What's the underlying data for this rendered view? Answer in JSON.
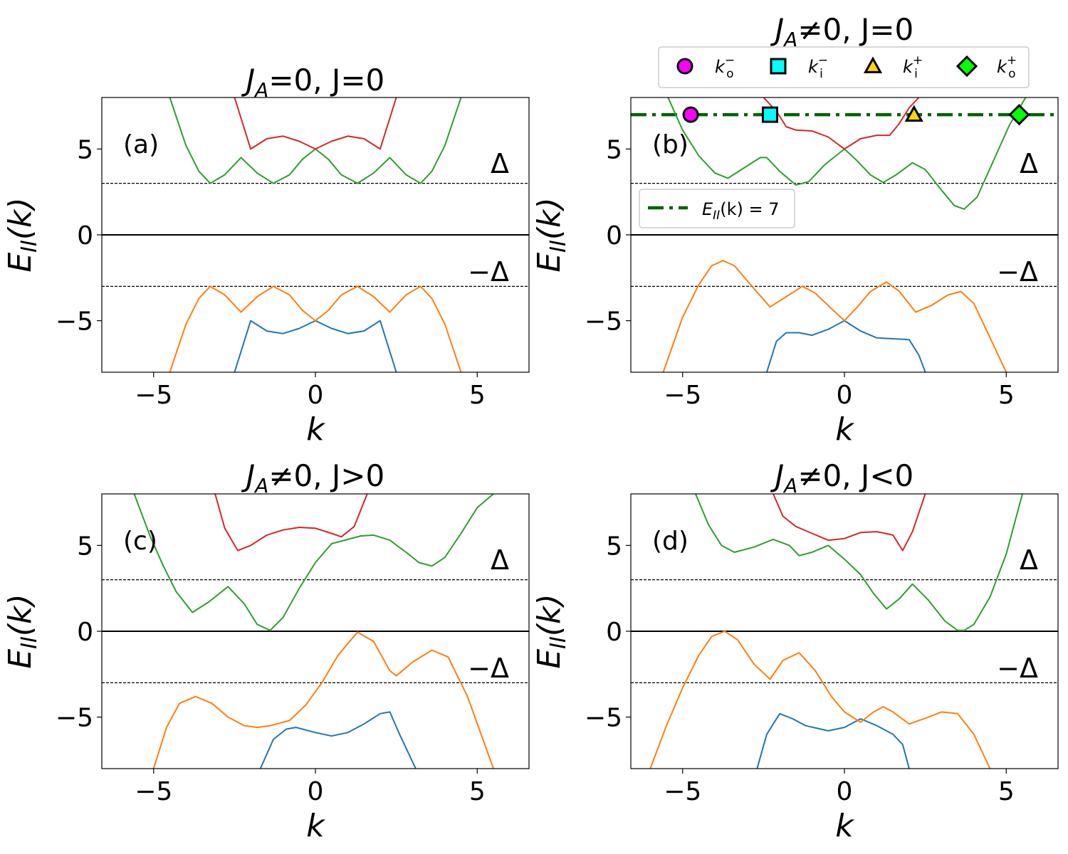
{
  "chart_data": [
    {
      "type": "line",
      "panel_label": "(a)",
      "title": "J_A=0, J=0",
      "title_parts": [
        "J",
        "A",
        "=0, J=0"
      ],
      "xlabel": "k",
      "ylabel": "E_II(k)",
      "xlim": [
        -6.6,
        6.6
      ],
      "ylim": [
        -8,
        8
      ],
      "xticks": [
        -5,
        0,
        5
      ],
      "yticks": [
        -5,
        0,
        5
      ],
      "xtick_labels": [
        "−5",
        "0",
        "5"
      ],
      "ytick_labels": [
        "−5",
        "0",
        "5"
      ],
      "hlines": {
        "gap_upper": 3,
        "gap_lower": -3,
        "zero": 0
      },
      "gap_labels": [
        "Δ",
        "−Δ"
      ],
      "series": [
        {
          "color": "#1f77b4",
          "x": [
            -2.5,
            -2.0,
            -1.5,
            -1.0,
            -0.5,
            0.0,
            0.5,
            1.0,
            1.5,
            2.0,
            2.5
          ],
          "y": [
            -8.0,
            -5.0,
            -5.6,
            -5.75,
            -5.45,
            -5.0,
            -5.45,
            -5.75,
            -5.6,
            -5.0,
            -8.0
          ]
        },
        {
          "color": "#ff7f0e",
          "x": [
            -4.5,
            -4.0,
            -3.6,
            -3.25,
            -2.8,
            -2.3,
            -1.8,
            -1.3,
            -0.8,
            -0.4,
            0.0,
            0.4,
            0.8,
            1.3,
            1.8,
            2.3,
            2.8,
            3.25,
            3.6,
            4.0,
            4.5
          ],
          "y": [
            -8.0,
            -5.2,
            -3.7,
            -3.0,
            -3.5,
            -4.5,
            -3.6,
            -3.0,
            -3.5,
            -4.4,
            -5.0,
            -4.4,
            -3.5,
            -3.0,
            -3.6,
            -4.5,
            -3.5,
            -3.0,
            -3.7,
            -5.2,
            -8.0
          ]
        },
        {
          "color": "#2ca02c",
          "x": [
            -4.5,
            -4.0,
            -3.6,
            -3.25,
            -2.8,
            -2.3,
            -1.8,
            -1.3,
            -0.8,
            -0.4,
            0.0,
            0.4,
            0.8,
            1.3,
            1.8,
            2.3,
            2.8,
            3.25,
            3.6,
            4.0,
            4.5
          ],
          "y": [
            8.0,
            5.2,
            3.7,
            3.0,
            3.5,
            4.5,
            3.6,
            3.0,
            3.5,
            4.4,
            5.0,
            4.4,
            3.5,
            3.0,
            3.6,
            4.5,
            3.5,
            3.0,
            3.7,
            5.2,
            8.0
          ]
        },
        {
          "color": "#d62728",
          "x": [
            -2.5,
            -2.0,
            -1.5,
            -1.0,
            -0.5,
            0.0,
            0.5,
            1.0,
            1.5,
            2.0,
            2.5
          ],
          "y": [
            8.0,
            5.0,
            5.6,
            5.75,
            5.45,
            5.0,
            5.45,
            5.75,
            5.6,
            5.0,
            8.0
          ]
        }
      ]
    },
    {
      "type": "line",
      "panel_label": "(b)",
      "title": "J_A≠0, J=0",
      "title_parts": [
        "J",
        "A",
        "≠0, J=0"
      ],
      "xlabel": "k",
      "ylabel": "E_II(k)",
      "xlim": [
        -6.6,
        6.6
      ],
      "ylim": [
        -8,
        8
      ],
      "xticks": [
        -5,
        0,
        5
      ],
      "yticks": [
        -5,
        0,
        5
      ],
      "xtick_labels": [
        "−5",
        "0",
        "5"
      ],
      "ytick_labels": [
        "−5",
        "0",
        "5"
      ],
      "hlines": {
        "gap_upper": 3,
        "gap_lower": -3,
        "zero": 0
      },
      "gap_labels": [
        "Δ",
        "−Δ"
      ],
      "reference_line": {
        "y": 7,
        "color": "#006400",
        "legend_label": "E_II(k) = 7",
        "legend_text": "E",
        "legend_sub": "II",
        "legend_rest": "(k) = 7"
      },
      "markers": [
        {
          "name": "k_o^-",
          "x": -4.75,
          "y": 7,
          "shape": "circle",
          "color": "#ff00ff",
          "base": "k",
          "sup": "−",
          "sub": "o"
        },
        {
          "name": "k_i^-",
          "x": -2.3,
          "y": 7,
          "shape": "square",
          "color": "#00ffff",
          "base": "k",
          "sup": "−",
          "sub": "i"
        },
        {
          "name": "k_i^+",
          "x": 2.15,
          "y": 7,
          "shape": "triangle",
          "color": "#ffd700",
          "base": "k",
          "sup": "+",
          "sub": "i"
        },
        {
          "name": "k_o^+",
          "x": 5.4,
          "y": 7,
          "shape": "diamond",
          "color": "#00ff00",
          "base": "k",
          "sup": "+",
          "sub": "o"
        }
      ],
      "series": [
        {
          "color": "#1f77b4",
          "x": [
            -2.4,
            -2.1,
            -1.8,
            -1.4,
            -1.0,
            -0.5,
            0.0,
            0.5,
            1.0,
            1.5,
            2.0,
            2.3,
            2.5
          ],
          "y": [
            -8.0,
            -6.2,
            -5.7,
            -5.7,
            -5.85,
            -5.5,
            -5.0,
            -5.6,
            -6.0,
            -6.05,
            -6.1,
            -7.0,
            -8.0
          ]
        },
        {
          "color": "#ff7f0e",
          "x": [
            -5.6,
            -5.0,
            -4.5,
            -4.1,
            -3.75,
            -3.4,
            -2.9,
            -2.3,
            -1.8,
            -1.3,
            -0.9,
            -0.4,
            0.0,
            0.4,
            0.8,
            1.3,
            1.7,
            2.2,
            2.7,
            3.2,
            3.6,
            4.0,
            4.4,
            5.0
          ],
          "y": [
            -8.0,
            -4.8,
            -2.9,
            -1.8,
            -1.5,
            -1.8,
            -2.9,
            -4.2,
            -3.6,
            -3.0,
            -3.4,
            -4.3,
            -5.0,
            -4.2,
            -3.3,
            -2.75,
            -3.3,
            -4.5,
            -4.1,
            -3.5,
            -3.3,
            -4.0,
            -5.6,
            -8.0
          ]
        },
        {
          "color": "#2ca02c",
          "x": [
            -5.45,
            -5.0,
            -4.5,
            -4.0,
            -3.6,
            -3.1,
            -2.6,
            -2.4,
            -2.0,
            -1.5,
            -1.1,
            -0.6,
            0.0,
            0.4,
            0.8,
            1.2,
            1.6,
            2.1,
            2.5,
            3.0,
            3.4,
            3.7,
            4.1,
            4.6,
            5.1,
            5.6
          ],
          "y": [
            8.0,
            6.1,
            4.6,
            3.6,
            3.3,
            3.9,
            4.5,
            4.5,
            3.7,
            2.9,
            3.1,
            4.1,
            5.0,
            4.3,
            3.5,
            3.05,
            3.5,
            4.2,
            3.8,
            2.6,
            1.7,
            1.5,
            2.2,
            4.3,
            6.4,
            8.0
          ]
        },
        {
          "color": "#d62728",
          "x": [
            -2.5,
            -2.1,
            -1.8,
            -1.5,
            -1.0,
            -0.5,
            0.0,
            0.5,
            1.0,
            1.4,
            1.7,
            2.0,
            2.3
          ],
          "y": [
            8.0,
            7.2,
            6.3,
            6.1,
            6.05,
            5.7,
            5.0,
            5.6,
            5.8,
            5.8,
            6.5,
            7.4,
            8.0
          ]
        }
      ]
    },
    {
      "type": "line",
      "panel_label": "(c)",
      "title": "J_A≠0, J>0",
      "title_parts": [
        "J",
        "A",
        "≠0, J>0"
      ],
      "xlabel": "k",
      "ylabel": "E_II(k)",
      "xlim": [
        -6.6,
        6.6
      ],
      "ylim": [
        -8,
        8
      ],
      "xticks": [
        -5,
        0,
        5
      ],
      "yticks": [
        -5,
        0,
        5
      ],
      "xtick_labels": [
        "−5",
        "0",
        "5"
      ],
      "ytick_labels": [
        "−5",
        "0",
        "5"
      ],
      "hlines": {
        "gap_upper": 3,
        "gap_lower": -3,
        "zero": 0
      },
      "gap_labels": [
        "Δ",
        "−Δ"
      ],
      "series": [
        {
          "color": "#1f77b4",
          "x": [
            -1.7,
            -1.3,
            -0.9,
            -0.6,
            0.0,
            0.5,
            1.0,
            1.5,
            2.0,
            2.3,
            2.6,
            3.1
          ],
          "y": [
            -8.0,
            -6.3,
            -5.7,
            -5.6,
            -5.9,
            -6.1,
            -5.9,
            -5.4,
            -4.8,
            -4.7,
            -6.0,
            -8.0
          ]
        },
        {
          "color": "#ff7f0e",
          "x": [
            -5.0,
            -4.6,
            -4.2,
            -3.7,
            -3.2,
            -2.7,
            -2.2,
            -1.8,
            -1.4,
            -0.8,
            -0.3,
            0.2,
            0.7,
            1.3,
            1.8,
            2.3,
            2.5,
            3.0,
            3.6,
            4.1,
            4.7,
            5.5
          ],
          "y": [
            -8.0,
            -5.6,
            -4.2,
            -3.8,
            -4.2,
            -5.0,
            -5.5,
            -5.6,
            -5.5,
            -5.2,
            -4.3,
            -3.0,
            -1.4,
            -0.05,
            -0.6,
            -2.3,
            -2.6,
            -1.8,
            -1.1,
            -1.5,
            -3.8,
            -8.0
          ]
        },
        {
          "color": "#2ca02c",
          "x": [
            -5.6,
            -5.1,
            -4.7,
            -4.3,
            -3.8,
            -3.3,
            -2.7,
            -2.2,
            -1.8,
            -1.4,
            -1.0,
            -0.5,
            0.0,
            0.5,
            0.9,
            1.4,
            1.8,
            2.3,
            2.8,
            3.2,
            3.6,
            4.0,
            4.5,
            5.0,
            5.5
          ],
          "y": [
            8.0,
            5.5,
            3.8,
            2.3,
            1.1,
            1.7,
            2.6,
            1.6,
            0.4,
            0.05,
            0.8,
            2.5,
            4.0,
            5.1,
            5.3,
            5.55,
            5.6,
            5.3,
            4.6,
            4.0,
            3.8,
            4.3,
            5.7,
            7.2,
            8.0
          ]
        },
        {
          "color": "#d62728",
          "x": [
            -3.1,
            -2.8,
            -2.4,
            -2.0,
            -1.5,
            -1.0,
            -0.5,
            0.0,
            0.5,
            0.8,
            1.2,
            1.6
          ],
          "y": [
            8.0,
            6.0,
            4.7,
            5.0,
            5.6,
            5.9,
            6.05,
            6.0,
            5.7,
            5.5,
            6.1,
            8.0
          ]
        }
      ]
    },
    {
      "type": "line",
      "panel_label": "(d)",
      "title": "J_A≠0, J<0",
      "title_parts": [
        "J",
        "A",
        "≠0, J<0"
      ],
      "xlabel": "k",
      "ylabel": "E_II(k)",
      "xlim": [
        -6.6,
        6.6
      ],
      "ylim": [
        -8,
        8
      ],
      "xticks": [
        -5,
        0,
        5
      ],
      "yticks": [
        -5,
        0,
        5
      ],
      "xtick_labels": [
        "−5",
        "0",
        "5"
      ],
      "ytick_labels": [
        "−5",
        "0",
        "5"
      ],
      "hlines": {
        "gap_upper": 3,
        "gap_lower": -3,
        "zero": 0
      },
      "gap_labels": [
        "Δ",
        "−Δ"
      ],
      "series": [
        {
          "color": "#1f77b4",
          "x": [
            -2.7,
            -2.4,
            -2.0,
            -1.6,
            -1.2,
            -0.5,
            0.0,
            0.5,
            1.0,
            1.5,
            1.8,
            2.0
          ],
          "y": [
            -8.0,
            -6.0,
            -4.8,
            -5.1,
            -5.5,
            -5.8,
            -5.6,
            -5.1,
            -5.5,
            -6.0,
            -6.6,
            -8.0
          ]
        },
        {
          "color": "#ff7f0e",
          "x": [
            -6.0,
            -5.5,
            -5.0,
            -4.5,
            -4.1,
            -3.7,
            -3.3,
            -2.8,
            -2.3,
            -1.9,
            -1.4,
            -0.9,
            -0.4,
            0.0,
            0.5,
            0.9,
            1.2,
            1.5,
            2.0,
            2.6,
            3.0,
            3.5,
            4.0,
            4.5
          ],
          "y": [
            -8.0,
            -5.5,
            -3.3,
            -1.4,
            -0.3,
            0.0,
            -0.5,
            -1.9,
            -2.8,
            -1.7,
            -1.25,
            -2.3,
            -3.8,
            -4.7,
            -5.3,
            -4.7,
            -4.4,
            -4.7,
            -5.4,
            -5.0,
            -4.7,
            -4.8,
            -6.0,
            -8.0
          ]
        },
        {
          "color": "#2ca02c",
          "x": [
            -4.6,
            -4.2,
            -3.8,
            -3.4,
            -2.8,
            -2.2,
            -1.7,
            -1.4,
            -1.0,
            -0.5,
            0.0,
            0.5,
            0.9,
            1.3,
            1.7,
            2.1,
            2.6,
            3.1,
            3.5,
            3.7,
            4.0,
            4.5,
            5.0,
            5.5
          ],
          "y": [
            8.0,
            6.2,
            5.0,
            4.6,
            4.9,
            5.35,
            5.0,
            4.4,
            4.6,
            5.0,
            4.2,
            3.3,
            2.2,
            1.3,
            1.9,
            2.75,
            1.8,
            0.6,
            0.05,
            0.05,
            0.4,
            2.0,
            4.5,
            8.0
          ]
        },
        {
          "color": "#d62728",
          "x": [
            -2.2,
            -1.9,
            -1.5,
            -1.0,
            -0.5,
            0.0,
            0.5,
            1.0,
            1.5,
            1.8,
            2.1,
            2.5
          ],
          "y": [
            8.0,
            6.7,
            6.1,
            5.7,
            5.3,
            5.4,
            5.75,
            5.8,
            5.6,
            4.7,
            5.8,
            8.0
          ]
        }
      ]
    }
  ]
}
